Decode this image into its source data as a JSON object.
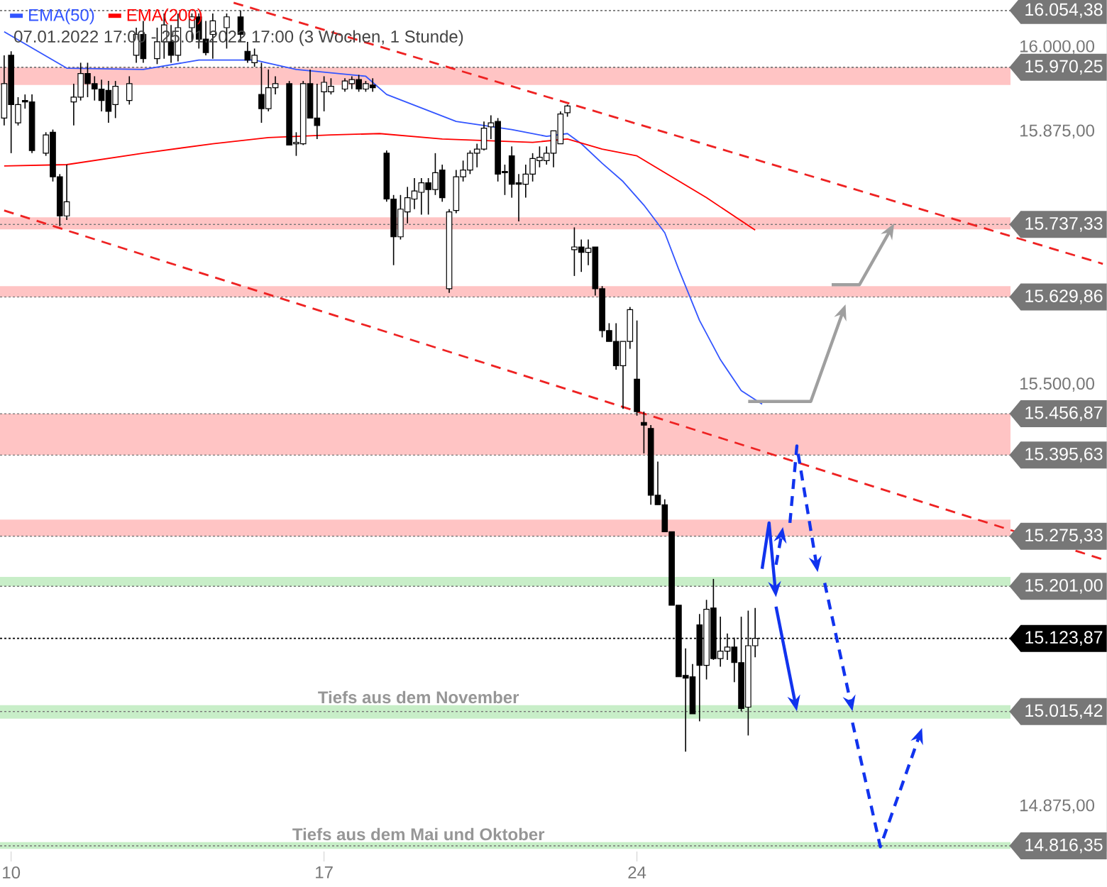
{
  "chart_data": {
    "type": "candlestick",
    "subtitle": "07.01.2022 17:00 - 25.01.2022 17:00  (3 Wochen, 1 Stunde)",
    "categories": [
      null,
      "10",
      null,
      null,
      null,
      null,
      null,
      null,
      null,
      null,
      null,
      null,
      null,
      null,
      null,
      null,
      null,
      null,
      null,
      null,
      null,
      null,
      null,
      null,
      null,
      null,
      null,
      null,
      null,
      null,
      null,
      null,
      null,
      null,
      null,
      null,
      null,
      null,
      null,
      null,
      null,
      null,
      null,
      null,
      null,
      null,
      "17",
      null,
      null,
      null,
      null,
      null,
      null,
      null,
      null,
      null,
      null,
      null,
      null,
      null,
      null,
      null,
      null,
      null,
      null,
      null,
      null,
      null,
      null,
      null,
      null,
      null,
      null,
      null,
      null,
      null,
      null,
      null,
      null,
      null,
      null,
      null,
      null,
      null,
      null,
      null,
      null,
      null,
      null,
      null,
      null,
      "24",
      null,
      null,
      null,
      null,
      null,
      null,
      null,
      null,
      null,
      null,
      null,
      null,
      null,
      null,
      null,
      null,
      null,
      null,
      null,
      null,
      null,
      null,
      null,
      null,
      null,
      null,
      null,
      null,
      null,
      null,
      null,
      null,
      null,
      null,
      null,
      null,
      null,
      null,
      null,
      null,
      null,
      null,
      null,
      null,
      null,
      null,
      null,
      null,
      null,
      null,
      null,
      null,
      null,
      null,
      null,
      null,
      null,
      null,
      null,
      null,
      null,
      null,
      null,
      null,
      null,
      null,
      null
    ],
    "ohlc": [
      [
        15895,
        15988,
        15884,
        15946
      ],
      [
        15988,
        15994,
        15843,
        15915
      ],
      [
        15888,
        15926,
        15884,
        15915
      ],
      [
        15921,
        15930,
        15909,
        15919
      ],
      [
        15919,
        15930,
        15843,
        15847
      ],
      null,
      [
        15843,
        15874,
        15839,
        15870
      ],
      [
        15874,
        15878,
        15801,
        15808
      ],
      [
        15808,
        15812,
        15735,
        15750
      ],
      [
        15750,
        15826,
        15744,
        15771
      ],
      [
        15919,
        15946,
        15884,
        15926
      ],
      [
        15926,
        15977,
        15921,
        15961
      ],
      [
        15961,
        15977,
        15926,
        15946
      ],
      [
        15946,
        15957,
        15921,
        15938
      ],
      [
        15938,
        15952,
        15905,
        15921
      ],
      [
        15936,
        15950,
        15888,
        15905
      ],
      [
        15915,
        15950,
        15895,
        15942
      ],
      null,
      [
        15921,
        15957,
        15915,
        15946
      ],
      [
        15988,
        16029,
        15977,
        16019
      ],
      [
        16019,
        16039,
        15977,
        15983
      ],
      null,
      [
        15983,
        16029,
        15975,
        16008
      ],
      [
        16008,
        16050,
        15983,
        16033
      ],
      [
        16008,
        16033,
        15977,
        15988
      ],
      [
        15988,
        16050,
        15979,
        16029
      ],
      null,
      [
        16029,
        16050,
        16008,
        16045
      ],
      [
        16045,
        16050,
        15998,
        16012
      ],
      [
        16012,
        16039,
        15988,
        15992
      ],
      [
        16019,
        16050,
        15983,
        16039
      ],
      null,
      [
        16029,
        16050,
        15998,
        16045
      ],
      null,
      [
        16045,
        16054.38,
        16008,
        16019
      ],
      [
        15994,
        16008,
        15977,
        15981
      ],
      [
        15977,
        15998,
        15971,
        15988
      ],
      [
        15930,
        15977,
        15888,
        15909
      ],
      [
        15909,
        15967,
        15905,
        15940
      ],
      [
        15940,
        15957,
        15930,
        15946
      ],
      null,
      [
        15946,
        15950,
        15855,
        15855
      ],
      [
        15857,
        15874,
        15839,
        15859
      ],
      [
        15857,
        15950,
        15855,
        15946
      ],
      [
        15946,
        15967,
        15895,
        15895
      ],
      [
        15895,
        15946,
        15864,
        15884
      ],
      [
        15934,
        15957,
        15905,
        15948
      ],
      [
        15934,
        15954,
        15930,
        15942
      ],
      null,
      [
        15938,
        15954,
        15934,
        15950
      ],
      [
        15946,
        15957,
        15938,
        15952
      ],
      [
        15952,
        15959,
        15934,
        15938
      ],
      [
        15938,
        15950,
        15934,
        15946
      ],
      [
        15944,
        15954,
        15934,
        15940
      ],
      null,
      [
        15843,
        15847,
        15771,
        15775
      ],
      [
        15775,
        15781,
        15677,
        15719
      ],
      [
        15719,
        15781,
        15715,
        15760
      ],
      [
        15756,
        15793,
        15739,
        15777
      ],
      [
        15775,
        15806,
        15760,
        15787
      ],
      [
        15785,
        15806,
        15752,
        15799
      ],
      [
        15799,
        15806,
        15752,
        15789
      ],
      [
        15789,
        15843,
        15781,
        15814
      ],
      [
        15818,
        15826,
        15771,
        15777
      ],
      [
        15642,
        15760,
        15636,
        15756
      ],
      [
        15758,
        15818,
        15754,
        15808
      ],
      [
        15808,
        15832,
        15801,
        15818
      ],
      [
        15818,
        15847,
        15812,
        15843
      ],
      [
        15843,
        15857,
        15822,
        15849
      ],
      [
        15849,
        15890,
        15847,
        15880
      ],
      [
        15882,
        15899,
        15864,
        15888
      ],
      [
        15890,
        15895,
        15801,
        15812
      ],
      [
        15816,
        15826,
        15781,
        15814
      ],
      [
        15839,
        15853,
        15777,
        15797
      ],
      [
        15799,
        15812,
        15742,
        15797
      ],
      [
        15797,
        15826,
        15777,
        15812
      ],
      [
        15812,
        15843,
        15801,
        15835
      ],
      [
        15832,
        15853,
        15822,
        15837
      ],
      [
        15832,
        15853,
        15826,
        15843
      ],
      [
        15843,
        15876,
        15822,
        15876
      ],
      [
        15857,
        15905,
        15857,
        15901
      ],
      [
        15903,
        15915,
        15897,
        15913
      ],
      [
        15700,
        15733,
        15661,
        15704
      ],
      [
        15704,
        15715,
        15667,
        15696
      ],
      [
        15696,
        15715,
        15677,
        15702
      ],
      [
        15704,
        15704,
        15632,
        15642
      ],
      [
        15642,
        15646,
        15570,
        15580
      ],
      [
        15580,
        15591,
        15564,
        15564
      ],
      [
        15564,
        15591,
        15522,
        15528
      ],
      [
        15528,
        15564,
        15464,
        15564
      ],
      [
        15564,
        15615,
        15553,
        15611
      ],
      [
        15508,
        15595,
        15454,
        15460
      ],
      [
        15444,
        15460,
        15398,
        15440
      ],
      [
        15435,
        15440,
        15322,
        15336
      ],
      [
        15336,
        15386,
        15322,
        15322
      ],
      [
        15322,
        15330,
        15282,
        15282
      ],
      [
        15282,
        15282,
        15173,
        15173
      ],
      [
        15173,
        15173,
        15067,
        15067
      ],
      [
        15069,
        15109,
        14956,
        15065
      ],
      [
        15067,
        15086,
        15012,
        15012
      ],
      [
        15144,
        15160,
        15001,
        15084
      ],
      [
        15084,
        15181,
        15063,
        15167
      ],
      [
        15169,
        15212,
        15092,
        15094
      ],
      [
        15094,
        15156,
        15082,
        15105
      ],
      [
        15105,
        15131,
        15092,
        15111
      ],
      [
        15111,
        15125,
        15059,
        15088
      ],
      [
        15088,
        15156,
        15016,
        15020
      ],
      [
        15022,
        15165,
        14980,
        15113
      ],
      [
        15113,
        15169,
        15096,
        15123.87
      ],
      null,
      null,
      null,
      null,
      null,
      null,
      null,
      null,
      null,
      null,
      null,
      null,
      null,
      null,
      null,
      null,
      null,
      null,
      null,
      null,
      null,
      null,
      null,
      null,
      null,
      null,
      null,
      null,
      null,
      null,
      null,
      null,
      null,
      null,
      null,
      null,
      null,
      null,
      null,
      null,
      null,
      null,
      null,
      null,
      null,
      null,
      null,
      null,
      null,
      null
    ],
    "series": [
      {
        "name": "EMA(50)",
        "type": "line",
        "color": "#3355ff",
        "values": [
          16023,
          null,
          null,
          null,
          null,
          null,
          null,
          null,
          null,
          15969,
          null,
          null,
          null,
          null,
          null,
          null,
          null,
          null,
          null,
          null,
          15967,
          null,
          null,
          null,
          null,
          null,
          null,
          null,
          15981,
          null,
          null,
          null,
          null,
          null,
          null,
          null,
          15981,
          null,
          null,
          null,
          null,
          null,
          15967,
          null,
          null,
          null,
          null,
          null,
          null,
          null,
          null,
          null,
          15957,
          null,
          null,
          15930,
          null,
          null,
          null,
          null,
          null,
          null,
          null,
          null,
          null,
          15890,
          null,
          null,
          null,
          null,
          null,
          null,
          null,
          15878,
          null,
          null,
          null,
          null,
          15868,
          null,
          null,
          15872,
          null,
          15857,
          null,
          null,
          15828,
          null,
          null,
          15801,
          null,
          null,
          15766,
          null,
          null,
          15725,
          null,
          15671,
          null,
          null,
          15595,
          null,
          null,
          15537,
          null,
          null,
          15491,
          null,
          null,
          15471,
          null,
          null,
          null,
          null,
          null,
          null,
          null,
          null,
          null,
          null,
          null,
          null,
          null,
          null,
          null,
          null,
          null,
          null,
          null,
          null,
          null,
          null,
          null,
          null,
          null,
          null,
          null,
          null,
          null,
          null,
          null,
          null,
          null,
          null,
          null,
          null,
          null,
          null,
          null,
          null,
          null,
          null,
          null,
          null,
          null,
          null,
          null,
          null,
          null
        ]
      },
      {
        "name": "EMA(200)",
        "type": "line",
        "color": "#ff0000",
        "values": [
          15824,
          null,
          null,
          null,
          null,
          null,
          null,
          null,
          null,
          15826,
          null,
          null,
          null,
          null,
          null,
          null,
          null,
          null,
          null,
          null,
          15843,
          null,
          null,
          null,
          null,
          null,
          null,
          null,
          null,
          null,
          15857,
          null,
          null,
          null,
          null,
          null,
          null,
          null,
          15866,
          null,
          null,
          null,
          null,
          null,
          null,
          null,
          null,
          15870,
          null,
          null,
          null,
          null,
          null,
          null,
          15872,
          null,
          null,
          null,
          null,
          null,
          null,
          null,
          null,
          15864,
          null,
          null,
          null,
          null,
          null,
          null,
          null,
          null,
          null,
          null,
          null,
          null,
          15859,
          null,
          null,
          null,
          null,
          15864,
          null,
          null,
          null,
          null,
          15849,
          null,
          null,
          null,
          null,
          15839,
          null,
          null,
          null,
          null,
          15808,
          null,
          null,
          null,
          null,
          15777,
          null,
          null,
          null,
          null,
          null,
          null,
          15729,
          null,
          null,
          null,
          null,
          null,
          null,
          null,
          null,
          null,
          null,
          null,
          null,
          null,
          null,
          null,
          null,
          null,
          null,
          null,
          null,
          null,
          null,
          null,
          null,
          null,
          null,
          null,
          null,
          null,
          null,
          null,
          null,
          null,
          null,
          null,
          null,
          null,
          null,
          null,
          null,
          null,
          null,
          null,
          null,
          null,
          null,
          null,
          null,
          null,
          null
        ]
      },
      {
        "type": "line",
        "color": "#ee2222",
        "line_style": "dashed",
        "values": [
          null,
          null,
          null,
          null,
          null,
          null,
          null,
          null,
          null,
          null,
          null,
          null,
          null,
          null,
          null,
          null,
          null,
          null,
          null,
          null,
          null,
          null,
          null,
          null,
          null,
          null,
          null,
          null,
          null,
          null,
          null,
          null,
          null,
          16066,
          null,
          null,
          null,
          null,
          null,
          null,
          null,
          null,
          null,
          null,
          null,
          null,
          null,
          null,
          null,
          null,
          null,
          null,
          null,
          null,
          null,
          null,
          null,
          null,
          null,
          null,
          null,
          null,
          null,
          null,
          null,
          null,
          null,
          null,
          null,
          null,
          null,
          null,
          null,
          null,
          null,
          null,
          null,
          null,
          null,
          null,
          null,
          null,
          null,
          null,
          null,
          null,
          null,
          null,
          null,
          null,
          null,
          null,
          null,
          null,
          null,
          null,
          null,
          null,
          null,
          null,
          null,
          null,
          null,
          null,
          null,
          null,
          null,
          null,
          null,
          null,
          null,
          null,
          null,
          null,
          null,
          null,
          null,
          null,
          null,
          null,
          null,
          null,
          null,
          null,
          null,
          null,
          null,
          null,
          null,
          null,
          null,
          null,
          null,
          null,
          null,
          null,
          null,
          null,
          null,
          null,
          null,
          null,
          null,
          null,
          null,
          null,
          null,
          null,
          null,
          null,
          null,
          null,
          null,
          null,
          null,
          null,
          null,
          null,
          15679
        ]
      },
      {
        "type": "line",
        "color": "#ee2222",
        "line_style": "dashed",
        "values": [
          15758,
          null,
          null,
          null,
          null,
          null,
          null,
          null,
          null,
          null,
          null,
          null,
          null,
          null,
          null,
          null,
          null,
          null,
          null,
          null,
          null,
          null,
          null,
          null,
          null,
          null,
          null,
          null,
          null,
          null,
          null,
          null,
          null,
          null,
          null,
          null,
          null,
          null,
          null,
          null,
          null,
          null,
          null,
          null,
          null,
          null,
          null,
          null,
          null,
          null,
          null,
          null,
          null,
          null,
          null,
          null,
          null,
          null,
          null,
          null,
          null,
          null,
          null,
          null,
          null,
          null,
          null,
          null,
          null,
          null,
          null,
          null,
          null,
          null,
          null,
          null,
          null,
          null,
          null,
          null,
          null,
          null,
          null,
          null,
          null,
          null,
          null,
          null,
          null,
          null,
          null,
          null,
          null,
          null,
          null,
          null,
          null,
          null,
          null,
          null,
          null,
          null,
          null,
          null,
          null,
          null,
          null,
          null,
          null,
          null,
          null,
          null,
          null,
          null,
          null,
          null,
          null,
          null,
          null,
          null,
          null,
          null,
          null,
          null,
          null,
          null,
          null,
          null,
          null,
          null,
          null,
          null,
          null,
          null,
          null,
          null,
          null,
          null,
          null,
          null,
          null,
          null,
          null,
          null,
          null,
          null,
          null,
          null,
          null,
          null,
          null,
          null,
          null,
          null,
          null,
          null,
          null,
          null,
          15241
        ]
      }
    ],
    "ylim": [
      14808,
      16070
    ],
    "yticks": [
      {
        "value": 16000,
        "label": "16.000,00"
      },
      {
        "value": 15875,
        "label": "15.875,00"
      },
      {
        "value": 15500,
        "label": "15.500,00"
      },
      {
        "value": 14875,
        "label": "14.875,00"
      }
    ],
    "bands": [
      {
        "axis": "y",
        "from": 15944,
        "to": 15970.25,
        "color": "#ffc4c4"
      },
      {
        "axis": "y",
        "from": 15730,
        "to": 15748,
        "color": "#ffc4c4"
      },
      {
        "axis": "y",
        "from": 15629.86,
        "to": 15646,
        "color": "#ffc4c4"
      },
      {
        "axis": "y",
        "from": 15395.63,
        "to": 15456.87,
        "color": "#ffc4c4"
      },
      {
        "axis": "y",
        "from": 15275.33,
        "to": 15300,
        "color": "#ffc4c4"
      },
      {
        "axis": "y",
        "from": 15201,
        "to": 15215,
        "color": "#c8eec8"
      },
      {
        "axis": "y",
        "from": 15005,
        "to": 15025,
        "color": "#c8eec8",
        "label": "Tiefs aus dem November"
      },
      {
        "axis": "y",
        "from": 14812,
        "to": 14822,
        "color": "#c8eec8",
        "label": "Tiefs aus dem Mai und Oktober"
      }
    ],
    "ref_lines": [
      {
        "axis": "y",
        "value": 16054.38,
        "label": "16.054,38",
        "color": "#777777",
        "line_style": "dotted"
      },
      {
        "axis": "y",
        "value": 15970.25,
        "label": "15.970,25",
        "color": "#777777",
        "line_style": "dotted"
      },
      {
        "axis": "y",
        "value": 15737.33,
        "label": "15.737,33",
        "color": "#777777",
        "line_style": "dotted"
      },
      {
        "axis": "y",
        "value": 15629.86,
        "label": "15.629,86",
        "color": "#777777",
        "line_style": "dotted"
      },
      {
        "axis": "y",
        "value": 15456.87,
        "label": "15.456,87",
        "color": "#777777",
        "line_style": "dotted"
      },
      {
        "axis": "y",
        "value": 15395.63,
        "label": "15.395,63",
        "color": "#777777",
        "line_style": "dotted"
      },
      {
        "axis": "y",
        "value": 15275.33,
        "label": "15.275,33",
        "color": "#777777",
        "line_style": "dotted"
      },
      {
        "axis": "y",
        "value": 15201,
        "label": "15.201,00",
        "color": "#777777",
        "line_style": "dotted"
      },
      {
        "axis": "y",
        "value": 15123.87,
        "label": "15.123,87",
        "color": "#000000",
        "line_style": "dotted"
      },
      {
        "axis": "y",
        "value": 15015.42,
        "label": "15.015,42",
        "color": "#777777",
        "line_style": "dotted"
      },
      {
        "axis": "y",
        "value": 14816.35,
        "label": "14.816,35",
        "color": "#777777",
        "line_style": "dotted"
      }
    ],
    "legend": "top left",
    "grid": false
  }
}
